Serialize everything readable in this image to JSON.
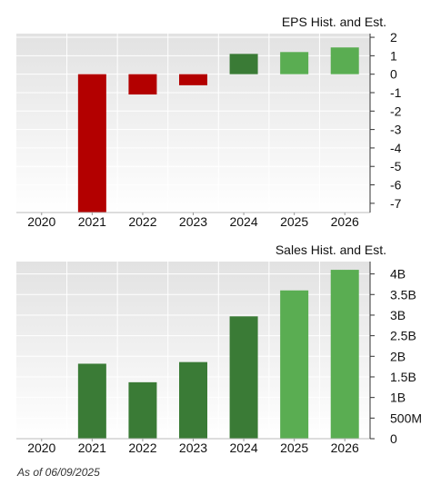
{
  "chart_data": [
    {
      "type": "bar",
      "title": "EPS Hist. and Est.",
      "categories": [
        "2020",
        "2021",
        "2022",
        "2023",
        "2024",
        "2025",
        "2026"
      ],
      "values": [
        null,
        -7.8,
        -1.1,
        -0.6,
        1.1,
        1.2,
        1.45
      ],
      "kinds": [
        "none",
        "negative",
        "negative",
        "negative",
        "historical",
        "estimate",
        "estimate"
      ],
      "y_ticks": [
        {
          "v": 2,
          "label": "2"
        },
        {
          "v": 1,
          "label": "1"
        },
        {
          "v": 0,
          "label": "0"
        },
        {
          "v": -1,
          "label": "-1"
        },
        {
          "v": -2,
          "label": "-2"
        },
        {
          "v": -3,
          "label": "-3"
        },
        {
          "v": -4,
          "label": "-4"
        },
        {
          "v": -5,
          "label": "-5"
        },
        {
          "v": -6,
          "label": "-6"
        },
        {
          "v": -7,
          "label": "-7"
        }
      ],
      "ylim": [
        -7.5,
        2.2
      ],
      "grid": true,
      "yaxis_side": "right"
    },
    {
      "type": "bar",
      "title": "Sales Hist. and Est.",
      "categories": [
        "2020",
        "2021",
        "2022",
        "2023",
        "2024",
        "2025",
        "2026"
      ],
      "values": [
        null,
        1.82,
        1.37,
        1.86,
        2.97,
        3.6,
        4.1
      ],
      "kinds": [
        "none",
        "historical",
        "historical",
        "historical",
        "historical",
        "estimate",
        "estimate"
      ],
      "y_ticks": [
        {
          "v": 4,
          "label": "4B"
        },
        {
          "v": 3.5,
          "label": "3.5B"
        },
        {
          "v": 3,
          "label": "3B"
        },
        {
          "v": 2.5,
          "label": "2.5B"
        },
        {
          "v": 2,
          "label": "2B"
        },
        {
          "v": 1.5,
          "label": "1.5B"
        },
        {
          "v": 1,
          "label": "1B"
        },
        {
          "v": 0.5,
          "label": "500M"
        },
        {
          "v": 0,
          "label": "0"
        }
      ],
      "ylim": [
        0,
        4.3
      ],
      "unit": "B",
      "grid": true,
      "yaxis_side": "right"
    }
  ],
  "colors": {
    "negative": "#b30000",
    "historical": "#3a7b36",
    "estimate": "#5aad52",
    "plot_bg_top": "#e2e2e2",
    "plot_bg_bottom": "#ffffff",
    "grid": "#ffffff",
    "axis": "#333333",
    "text": "#111111"
  },
  "footnote": "As of 06/09/2025"
}
